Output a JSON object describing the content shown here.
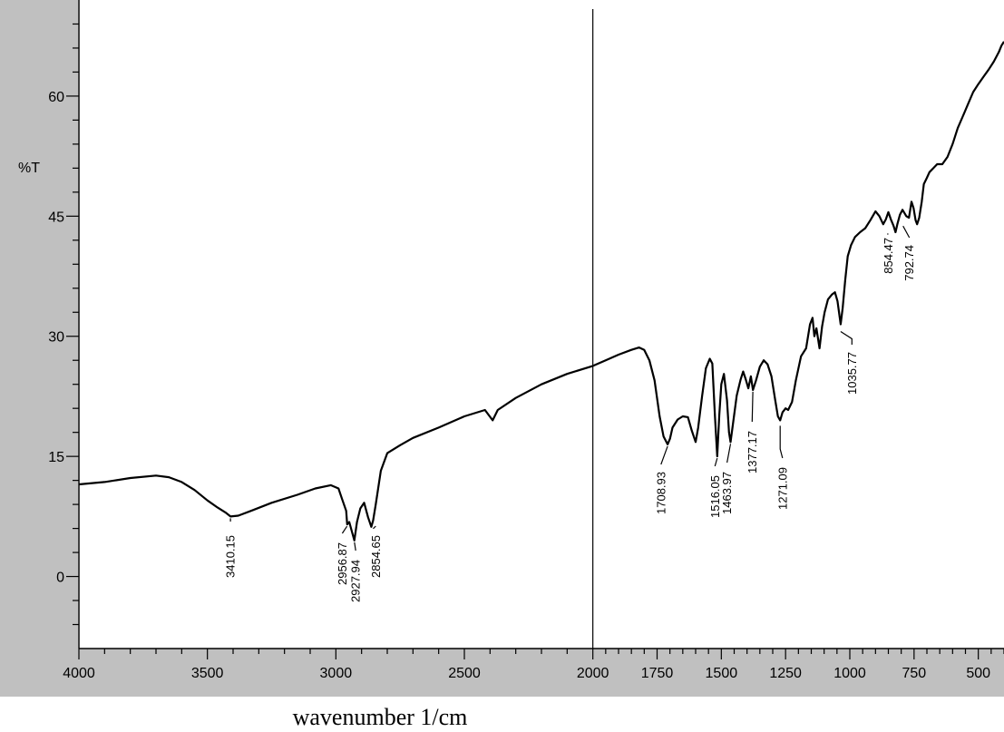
{
  "chart_data": {
    "type": "line",
    "xlabel": "wavenumber 1/cm",
    "ylabel": "%T",
    "xlim": [
      4000,
      400
    ],
    "ylim": [
      -9,
      72
    ],
    "x_reversed": true,
    "grid": false,
    "x_ticks": [
      4000,
      3500,
      3000,
      2500,
      2000,
      1750,
      1500,
      1250,
      1000,
      750,
      500
    ],
    "y_ticks": [
      0,
      15,
      30,
      45,
      60
    ],
    "colors": {
      "panel": "#c0c0c0",
      "line": "#000000",
      "plot_bg": "#ffffff"
    },
    "cursor_x": 2000,
    "series": [
      {
        "points": [
          [
            4000,
            11.5
          ],
          [
            3900,
            11.8
          ],
          [
            3800,
            12.3
          ],
          [
            3700,
            12.6
          ],
          [
            3650,
            12.4
          ],
          [
            3600,
            11.8
          ],
          [
            3550,
            10.8
          ],
          [
            3500,
            9.5
          ],
          [
            3460,
            8.6
          ],
          [
            3430,
            8.0
          ],
          [
            3410,
            7.5
          ],
          [
            3380,
            7.6
          ],
          [
            3330,
            8.2
          ],
          [
            3250,
            9.2
          ],
          [
            3150,
            10.2
          ],
          [
            3080,
            11.0
          ],
          [
            3020,
            11.4
          ],
          [
            2990,
            11.0
          ],
          [
            2975,
            9.6
          ],
          [
            2960,
            8.2
          ],
          [
            2956,
            6.5
          ],
          [
            2948,
            6.8
          ],
          [
            2940,
            5.9
          ],
          [
            2928,
            4.5
          ],
          [
            2918,
            6.8
          ],
          [
            2905,
            8.5
          ],
          [
            2890,
            9.2
          ],
          [
            2875,
            7.4
          ],
          [
            2862,
            6.2
          ],
          [
            2855,
            7.0
          ],
          [
            2845,
            9.0
          ],
          [
            2825,
            13.2
          ],
          [
            2800,
            15.4
          ],
          [
            2750,
            16.4
          ],
          [
            2700,
            17.3
          ],
          [
            2600,
            18.6
          ],
          [
            2500,
            20.0
          ],
          [
            2420,
            20.8
          ],
          [
            2390,
            19.5
          ],
          [
            2370,
            20.8
          ],
          [
            2300,
            22.3
          ],
          [
            2200,
            24.0
          ],
          [
            2100,
            25.3
          ],
          [
            2000,
            26.3
          ],
          [
            1950,
            27.0
          ],
          [
            1900,
            27.7
          ],
          [
            1850,
            28.3
          ],
          [
            1820,
            28.6
          ],
          [
            1800,
            28.3
          ],
          [
            1780,
            27.0
          ],
          [
            1760,
            24.5
          ],
          [
            1740,
            20.0
          ],
          [
            1725,
            17.5
          ],
          [
            1709,
            16.5
          ],
          [
            1700,
            17.2
          ],
          [
            1690,
            18.6
          ],
          [
            1670,
            19.6
          ],
          [
            1650,
            20.0
          ],
          [
            1630,
            19.9
          ],
          [
            1615,
            18.2
          ],
          [
            1600,
            16.8
          ],
          [
            1590,
            18.6
          ],
          [
            1575,
            22.5
          ],
          [
            1560,
            26.0
          ],
          [
            1545,
            27.2
          ],
          [
            1535,
            26.6
          ],
          [
            1525,
            20.0
          ],
          [
            1516,
            15.0
          ],
          [
            1508,
            20.2
          ],
          [
            1500,
            24.0
          ],
          [
            1490,
            25.3
          ],
          [
            1478,
            22.0
          ],
          [
            1470,
            18.0
          ],
          [
            1464,
            16.8
          ],
          [
            1455,
            19.0
          ],
          [
            1440,
            22.6
          ],
          [
            1425,
            24.6
          ],
          [
            1415,
            25.6
          ],
          [
            1405,
            24.6
          ],
          [
            1395,
            23.5
          ],
          [
            1385,
            25.0
          ],
          [
            1377,
            23.3
          ],
          [
            1365,
            24.5
          ],
          [
            1350,
            26.2
          ],
          [
            1335,
            27.0
          ],
          [
            1320,
            26.5
          ],
          [
            1305,
            25.0
          ],
          [
            1290,
            22.0
          ],
          [
            1280,
            20.0
          ],
          [
            1271,
            19.5
          ],
          [
            1262,
            20.5
          ],
          [
            1250,
            21.0
          ],
          [
            1240,
            20.8
          ],
          [
            1225,
            21.8
          ],
          [
            1210,
            24.5
          ],
          [
            1190,
            27.5
          ],
          [
            1170,
            28.5
          ],
          [
            1155,
            31.5
          ],
          [
            1145,
            32.3
          ],
          [
            1138,
            30.0
          ],
          [
            1130,
            31.0
          ],
          [
            1118,
            28.5
          ],
          [
            1108,
            31.2
          ],
          [
            1098,
            33.0
          ],
          [
            1085,
            34.6
          ],
          [
            1070,
            35.2
          ],
          [
            1058,
            35.5
          ],
          [
            1048,
            34.4
          ],
          [
            1040,
            32.5
          ],
          [
            1035.8,
            31.5
          ],
          [
            1028,
            33.5
          ],
          [
            1018,
            37.0
          ],
          [
            1008,
            40.0
          ],
          [
            995,
            41.4
          ],
          [
            980,
            42.4
          ],
          [
            960,
            43.0
          ],
          [
            940,
            43.5
          ],
          [
            920,
            44.5
          ],
          [
            900,
            45.6
          ],
          [
            885,
            45.0
          ],
          [
            870,
            44.0
          ],
          [
            860,
            44.6
          ],
          [
            850,
            45.5
          ],
          [
            840,
            44.6
          ],
          [
            830,
            43.8
          ],
          [
            822,
            43.0
          ],
          [
            815,
            44.0
          ],
          [
            805,
            45.2
          ],
          [
            795,
            45.8
          ],
          [
            780,
            45.0
          ],
          [
            770,
            44.8
          ],
          [
            760,
            46.8
          ],
          [
            752,
            46.0
          ],
          [
            744,
            44.5
          ],
          [
            738,
            44.0
          ],
          [
            730,
            44.8
          ],
          [
            720,
            46.8
          ],
          [
            712,
            49.0
          ],
          [
            700,
            49.8
          ],
          [
            690,
            50.5
          ],
          [
            675,
            51.0
          ],
          [
            660,
            51.5
          ],
          [
            640,
            51.5
          ],
          [
            620,
            52.4
          ],
          [
            600,
            54.0
          ],
          [
            580,
            56.0
          ],
          [
            560,
            57.5
          ],
          [
            540,
            59.0
          ],
          [
            520,
            60.5
          ],
          [
            500,
            61.5
          ],
          [
            480,
            62.4
          ],
          [
            460,
            63.3
          ],
          [
            440,
            64.3
          ],
          [
            420,
            65.5
          ],
          [
            410,
            66.3
          ],
          [
            400,
            66.8
          ]
        ]
      }
    ],
    "peak_labels": [
      {
        "text": "3410.15",
        "x": 3410.15,
        "y": 7.5
      },
      {
        "text": "2956.87",
        "x": 2956.87,
        "y": 6.5
      },
      {
        "text": "2927.94",
        "x": 2927.94,
        "y": 4.5
      },
      {
        "text": "2854.65",
        "x": 2854.65,
        "y": 6.2
      },
      {
        "text": "1708.93",
        "x": 1708.93,
        "y": 16.5
      },
      {
        "text": "1516.05",
        "x": 1516.05,
        "y": 15.0
      },
      {
        "text": "1463.97",
        "x": 1463.97,
        "y": 16.8
      },
      {
        "text": "1377.17",
        "x": 1377.17,
        "y": 23.3
      },
      {
        "text": "1271.09",
        "x": 1271.09,
        "y": 19.5
      },
      {
        "text": "1035.77",
        "x": 1035.77,
        "y": 31.5
      },
      {
        "text": "854.47",
        "x": 854.47,
        "y": 43.0
      },
      {
        "text": "792.74",
        "x": 792.74,
        "y": 44.0
      }
    ]
  }
}
